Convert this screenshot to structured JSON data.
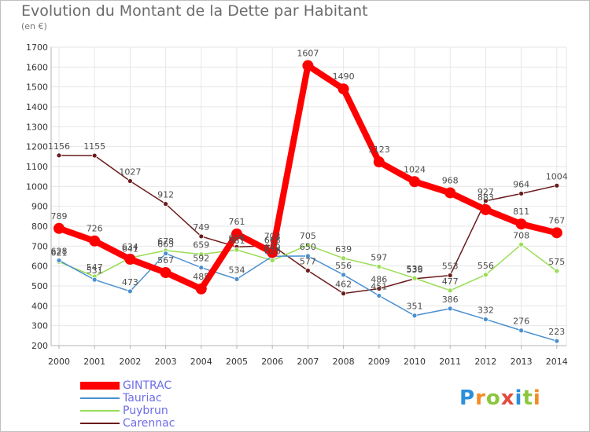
{
  "title": "Evolution du Montant de la Dette par Habitant",
  "unit": "(en €)",
  "logo_text": "Proxiti",
  "colors": {
    "grid": "#e6e6e6",
    "axis": "#b3b3b3",
    "tick_text": "#333333",
    "label_text": "#4d4d4d",
    "legend_text": "#6d6de8"
  },
  "chart_data": {
    "type": "line",
    "title": "Evolution du Montant de la Dette par Habitant",
    "subtitle": "(en €)",
    "xlabel": "",
    "ylabel": "",
    "x": [
      "2000",
      "2001",
      "2002",
      "2003",
      "2004",
      "2005",
      "2006",
      "2007",
      "2008",
      "2009",
      "2010",
      "2011",
      "2012",
      "2013",
      "2014"
    ],
    "ylim": [
      200,
      1700
    ],
    "yticks": [
      200,
      300,
      400,
      500,
      600,
      700,
      800,
      900,
      1000,
      1100,
      1200,
      1300,
      1400,
      1500,
      1600,
      1700
    ],
    "grid": true,
    "legend_position": "bottom-left",
    "series": [
      {
        "name": "GINTRAC",
        "color": "#ff0000",
        "values": [
          789,
          726,
          634,
          567,
          485,
          761,
          668,
          1607,
          1490,
          1123,
          1024,
          968,
          883,
          811,
          767
        ]
      },
      {
        "name": "Tauriac",
        "color": "#4a8fd0",
        "values": [
          628,
          531,
          473,
          663,
          592,
          534,
          649,
          650,
          556,
          451,
          351,
          386,
          332,
          276,
          223
        ]
      },
      {
        "name": "Puybrun",
        "color": "#99dd55",
        "values": [
          621,
          547,
          641,
          678,
          659,
          681,
          628,
          705,
          639,
          597,
          539,
          477,
          556,
          708,
          575
        ]
      },
      {
        "name": "Carennac",
        "color": "#6b1a1a",
        "values": [
          1156,
          1155,
          1027,
          912,
          749,
          696,
          703,
          577,
          462,
          486,
          536,
          553,
          927,
          964,
          1004
        ]
      }
    ]
  }
}
